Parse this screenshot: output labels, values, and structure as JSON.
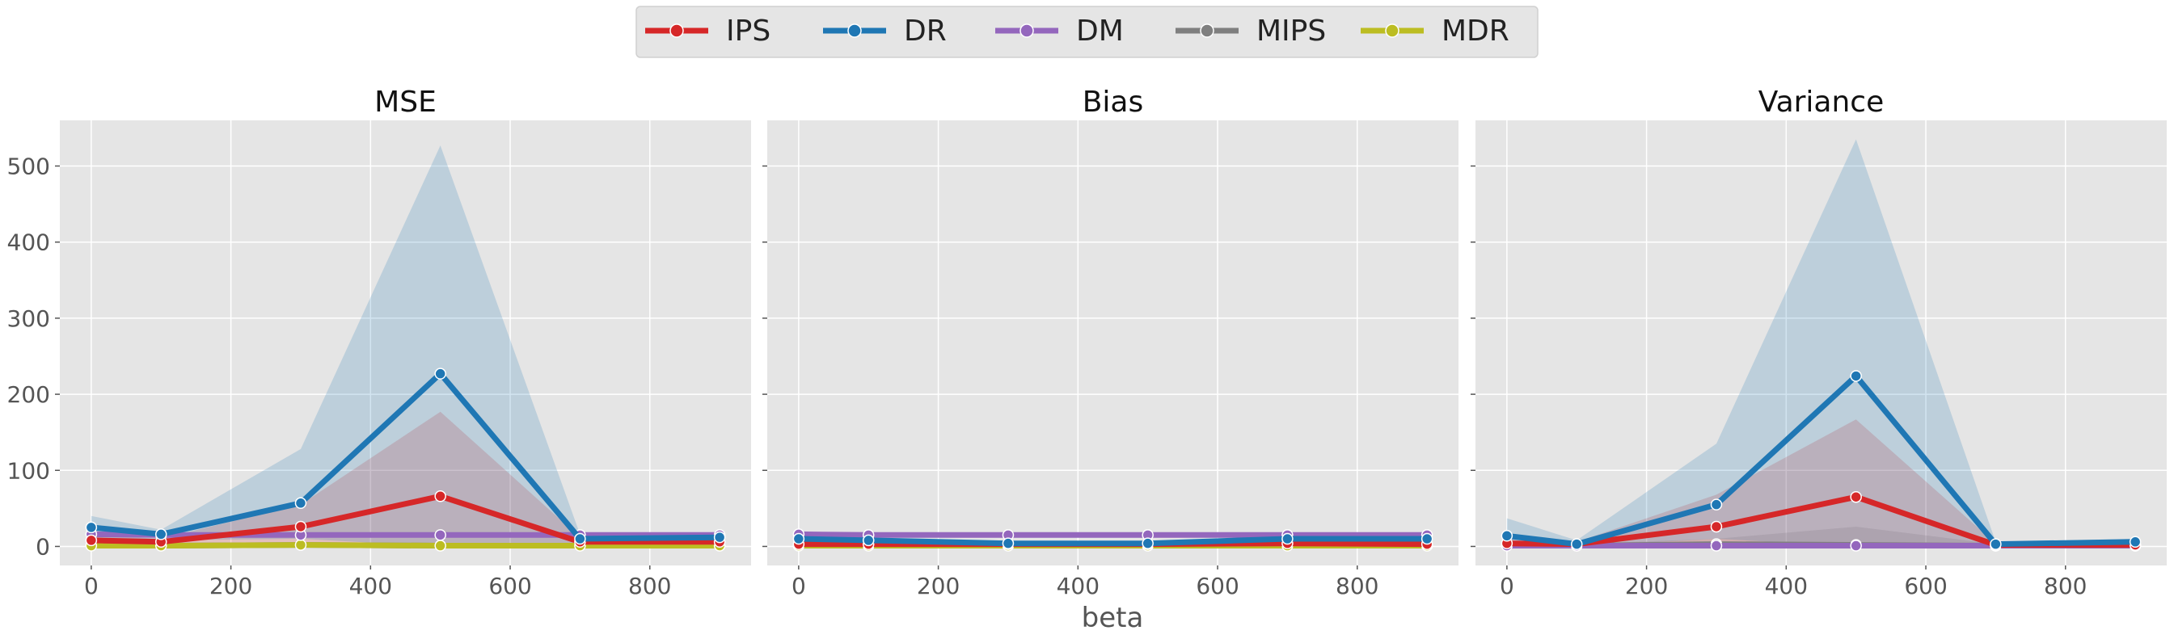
{
  "legend": {
    "items": [
      {
        "label": "IPS",
        "color": "#d62728"
      },
      {
        "label": "DR",
        "color": "#1f77b4"
      },
      {
        "label": "DM",
        "color": "#9467bd"
      },
      {
        "label": "MIPS",
        "color": "#7f7f7f"
      },
      {
        "label": "MDR",
        "color": "#bcbd22"
      }
    ]
  },
  "xlabel": "beta",
  "colors": {
    "panel_bg": "#e5e5e5",
    "grid": "#ffffff",
    "tick_text": "#555555",
    "legend_bg": "#e5e5e5"
  },
  "chart_data": [
    {
      "type": "line",
      "title": "MSE",
      "x": [
        0,
        100,
        300,
        500,
        700,
        900
      ],
      "xlim": [
        -45,
        945
      ],
      "ylim": [
        -25,
        560
      ],
      "xticks": [
        0,
        200,
        400,
        600,
        800
      ],
      "yticks": [
        0,
        100,
        200,
        300,
        400,
        500
      ],
      "grid": true,
      "series": [
        {
          "name": "DR",
          "values": [
            25,
            16,
            57,
            227,
            10,
            12
          ],
          "lower": [
            10,
            8,
            10,
            0,
            3,
            4
          ],
          "upper": [
            40,
            22,
            128,
            527,
            16,
            18
          ]
        },
        {
          "name": "IPS",
          "values": [
            8,
            6,
            26,
            66,
            6,
            6
          ],
          "lower": [
            2,
            2,
            5,
            0,
            1,
            1
          ],
          "upper": [
            15,
            10,
            55,
            177,
            12,
            12
          ]
        },
        {
          "name": "DM",
          "values": [
            16,
            15,
            15,
            15,
            15,
            15
          ],
          "lower": [
            14,
            14,
            14,
            14,
            14,
            14
          ],
          "upper": [
            18,
            17,
            17,
            17,
            17,
            17
          ]
        },
        {
          "name": "MIPS",
          "values": [
            2,
            1,
            2,
            1,
            1,
            1
          ],
          "lower": [
            0,
            0,
            0,
            0,
            0,
            0
          ],
          "upper": [
            4,
            2,
            4,
            3,
            2,
            2
          ]
        },
        {
          "name": "MDR",
          "values": [
            1,
            1,
            2,
            1,
            1,
            1
          ],
          "lower": [
            0,
            0,
            0,
            0,
            0,
            0
          ],
          "upper": [
            2,
            2,
            3,
            2,
            2,
            2
          ]
        }
      ]
    },
    {
      "type": "line",
      "title": "Bias",
      "x": [
        0,
        100,
        300,
        500,
        700,
        900
      ],
      "xlim": [
        -45,
        945
      ],
      "ylim": [
        -25,
        560
      ],
      "xticks": [
        0,
        200,
        400,
        600,
        800
      ],
      "yticks": [
        0,
        100,
        200,
        300,
        400,
        500
      ],
      "grid": true,
      "series": [
        {
          "name": "DR",
          "values": [
            10,
            8,
            4,
            4,
            10,
            10
          ],
          "lower": [
            9,
            7,
            3,
            3,
            9,
            9
          ],
          "upper": [
            11,
            9,
            5,
            5,
            11,
            11
          ]
        },
        {
          "name": "IPS",
          "values": [
            3,
            3,
            3,
            3,
            4,
            3
          ],
          "lower": [
            2,
            2,
            2,
            2,
            3,
            2
          ],
          "upper": [
            4,
            4,
            4,
            4,
            5,
            4
          ]
        },
        {
          "name": "DM",
          "values": [
            16,
            15,
            15,
            15,
            15,
            15
          ],
          "lower": [
            15,
            14,
            14,
            14,
            14,
            14
          ],
          "upper": [
            17,
            16,
            16,
            16,
            16,
            16
          ]
        },
        {
          "name": "MIPS",
          "values": [
            1,
            1,
            1,
            1,
            1,
            1
          ],
          "lower": [
            0,
            0,
            0,
            0,
            0,
            0
          ],
          "upper": [
            2,
            2,
            2,
            2,
            2,
            2
          ]
        },
        {
          "name": "MDR",
          "values": [
            1,
            1,
            1,
            1,
            1,
            1
          ],
          "lower": [
            0,
            0,
            0,
            0,
            0,
            0
          ],
          "upper": [
            2,
            2,
            2,
            2,
            2,
            2
          ]
        }
      ]
    },
    {
      "type": "line",
      "title": "Variance",
      "x": [
        0,
        100,
        300,
        500,
        700,
        900
      ],
      "xlim": [
        -45,
        945
      ],
      "ylim": [
        -25,
        560
      ],
      "xticks": [
        0,
        200,
        400,
        600,
        800
      ],
      "yticks": [
        0,
        100,
        200,
        300,
        400,
        500
      ],
      "grid": true,
      "series": [
        {
          "name": "DR",
          "values": [
            14,
            3,
            55,
            224,
            3,
            6
          ],
          "lower": [
            0,
            0,
            10,
            0,
            0,
            2
          ],
          "upper": [
            37,
            8,
            135,
            535,
            6,
            10
          ]
        },
        {
          "name": "IPS",
          "values": [
            4,
            3,
            26,
            65,
            2,
            2
          ],
          "lower": [
            0,
            0,
            5,
            0,
            0,
            0
          ],
          "upper": [
            10,
            6,
            68,
            167,
            4,
            4
          ]
        },
        {
          "name": "DM",
          "values": [
            1,
            1,
            1,
            1,
            1,
            1
          ],
          "lower": [
            0,
            0,
            0,
            0,
            0,
            0
          ],
          "upper": [
            2,
            2,
            2,
            2,
            2,
            2
          ]
        },
        {
          "name": "MIPS",
          "values": [
            2,
            1,
            3,
            2,
            1,
            1
          ],
          "lower": [
            0,
            0,
            0,
            0,
            0,
            0
          ],
          "upper": [
            5,
            3,
            10,
            26,
            3,
            3
          ]
        },
        {
          "name": "MDR",
          "values": [
            1,
            1,
            1,
            1,
            1,
            1
          ],
          "lower": [
            0,
            0,
            0,
            0,
            0,
            0
          ],
          "upper": [
            2,
            2,
            2,
            2,
            2,
            2
          ]
        }
      ]
    }
  ]
}
